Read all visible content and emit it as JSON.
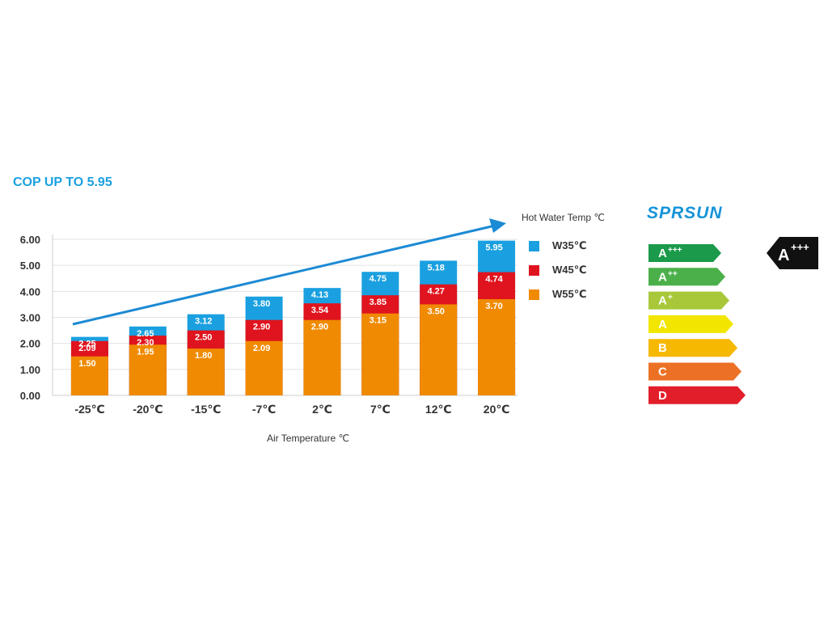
{
  "headline": "COP UP TO 5.95",
  "brand": "SPRSUN",
  "chart_data": {
    "type": "bar",
    "stacked_overlay": true,
    "categories": [
      "-25℃",
      "-20℃",
      "-15℃",
      "-7℃",
      "2℃",
      "7℃",
      "12℃",
      "20℃"
    ],
    "series": [
      {
        "name": "W35℃",
        "color": "#1aa0e0",
        "values": [
          2.25,
          2.65,
          3.12,
          3.8,
          4.13,
          4.75,
          5.18,
          5.95
        ],
        "labels": [
          "2.25",
          "2.65",
          "3.12",
          "3.80",
          "4.13",
          "4.75",
          "5.18",
          "5.95"
        ]
      },
      {
        "name": "W45℃",
        "color": "#e0141e",
        "values": [
          2.09,
          2.3,
          2.5,
          2.9,
          3.54,
          3.85,
          4.27,
          4.74
        ],
        "labels": [
          "2.09",
          "2.30",
          "2.50",
          "2.90",
          "3.54",
          "3.85",
          "4.27",
          "4.74"
        ]
      },
      {
        "name": "W55℃",
        "color": "#f08a00",
        "values": [
          1.5,
          1.95,
          1.8,
          2.09,
          2.9,
          3.15,
          3.5,
          3.7
        ],
        "labels": [
          "1.50",
          "1.95",
          "1.80",
          "2.09",
          "2.90",
          "3.15",
          "3.50",
          "3.70"
        ]
      }
    ],
    "yticks": [
      "0.00",
      "1.00",
      "2.00",
      "3.00",
      "4.00",
      "5.00",
      "6.00"
    ],
    "ylim": [
      0,
      6
    ],
    "xlabel": "Air Temperature ℃",
    "legend_title": "Hot Water Temp ℃",
    "grid": true,
    "trend_arrow_color": "#1c8ad4"
  },
  "energy_label": {
    "ratings": [
      {
        "label": "A",
        "sup": "+++",
        "color": "#1a9a4a"
      },
      {
        "label": "A",
        "sup": "++",
        "color": "#4bb04a"
      },
      {
        "label": "A",
        "sup": "+",
        "color": "#a8c83a"
      },
      {
        "label": "A",
        "sup": "",
        "color": "#f2e600"
      },
      {
        "label": "B",
        "sup": "",
        "color": "#f6b800"
      },
      {
        "label": "C",
        "sup": "",
        "color": "#ec7124"
      },
      {
        "label": "D",
        "sup": "",
        "color": "#e21e2a"
      }
    ],
    "current": {
      "label": "A",
      "sup": "+++",
      "color": "#111111"
    }
  }
}
